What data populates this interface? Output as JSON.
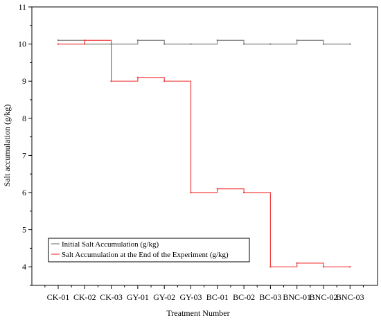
{
  "chart_data": {
    "type": "line",
    "title": "",
    "xlabel": "Treatment Number",
    "ylabel": "Salt accumulation (g/kg)",
    "ylim": [
      3.5,
      11
    ],
    "yticks": [
      4,
      5,
      6,
      7,
      8,
      9,
      10,
      11
    ],
    "categories": [
      "CK-01",
      "CK-02",
      "CK-03",
      "GY-01",
      "GY-02",
      "GY-03",
      "BC-01",
      "BC-02",
      "BC-03",
      "BNC-01",
      "BNC-02",
      "BNC-03"
    ],
    "step_style": "step-end",
    "legend_position": "lower-left",
    "grid": false,
    "series": [
      {
        "name": "Initial Salt Accumulation (g/kg)",
        "color": "#7f7f7f",
        "values": [
          10.1,
          10.0,
          10.0,
          10.1,
          10.0,
          10.0,
          10.1,
          10.0,
          10.0,
          10.1,
          10.0,
          10.0
        ]
      },
      {
        "name": "Salt Accumulation at the End of the Experiment (g/kg)",
        "color": "#f04040",
        "values": [
          10.0,
          10.1,
          9.0,
          9.1,
          9.0,
          6.0,
          6.1,
          6.0,
          4.0,
          4.1,
          4.0,
          4.0
        ]
      }
    ]
  }
}
